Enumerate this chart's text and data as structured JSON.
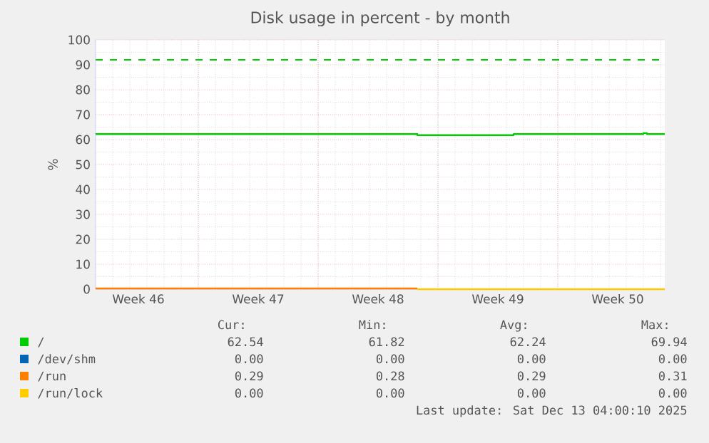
{
  "chart_data": {
    "type": "step",
    "title": "Disk usage in percent - by month",
    "ylabel": "%",
    "xlim": [
      "2025-11-11T00:00",
      "2025-12-14T06:00"
    ],
    "ylim": [
      0,
      100
    ],
    "xticks": [
      {
        "value": "2025-11-13T12:00",
        "label": "Week 46"
      },
      {
        "value": "2025-11-20T12:00",
        "label": "Week 47"
      },
      {
        "value": "2025-11-27T12:00",
        "label": "Week 48"
      },
      {
        "value": "2025-12-04T12:00",
        "label": "Week 49"
      },
      {
        "value": "2025-12-11T12:00",
        "label": "Week 50"
      },
      {
        "value": "2025-11-17",
        "label": null
      },
      {
        "value": "2025-11-24",
        "label": null
      },
      {
        "value": "2025-12-01",
        "label": null
      },
      {
        "value": "2025-12-08",
        "label": null
      }
    ],
    "yticks": [
      0,
      10,
      20,
      30,
      40,
      50,
      60,
      70,
      80,
      90,
      100
    ],
    "grid": true,
    "legend": "bottom",
    "series": [
      {
        "name": "/",
        "color": "#00cc00",
        "x": [
          "2025-11-11T00:00",
          "2025-11-29T19:00",
          "2025-12-05T10:00",
          "2025-12-13T00:00",
          "2025-12-13T05:00",
          "2025-12-14T06:00"
        ],
        "values": [
          62.2,
          61.8,
          62.2,
          62.6,
          62.2,
          62.2
        ]
      },
      {
        "name": "/dev/shm",
        "color": "#0066b3"
      },
      {
        "name": "/run",
        "color": "#ff8000",
        "x": [
          "2025-11-11T00:00",
          "2025-11-29T19:00"
        ],
        "values": [
          0.3,
          0.3
        ]
      },
      {
        "name": "/run/lock",
        "color": "#ffcc00",
        "x": [
          "2025-11-29T19:00",
          "2025-12-14T06:00"
        ],
        "values": [
          0,
          0
        ]
      }
    ],
    "ref_lines": [
      {
        "axis": "y",
        "value": 92,
        "color": "#00cc00",
        "line_style": "dashed"
      }
    ],
    "annotations": [
      "Cur:",
      "Min:",
      "Avg:",
      "Max:",
      "62.54",
      "61.82",
      "62.24",
      "69.94",
      "0.00",
      "0.00",
      "0.00",
      "0.00",
      "0.29",
      "0.28",
      "0.29",
      "0.31",
      "0.00",
      "0.00",
      "0.00",
      "0.00",
      "Last update: Sat Dec 13 04:00:10 2025"
    ]
  }
}
